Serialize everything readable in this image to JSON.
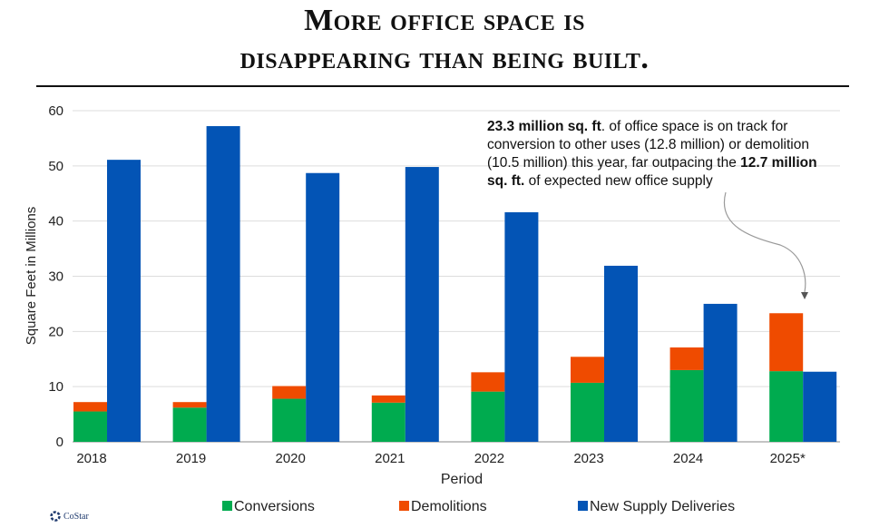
{
  "title_line1": "More office space is",
  "title_line2": "disappearing than being built.",
  "annotation": {
    "bold1": "23.3 million sq. ft",
    "text1": ". of office space is on track for conversion to other uses (12.8 million) or demolition (10.5 million) this year, far outpacing the ",
    "bold2": "12.7 million sq. ft.",
    "text2": " of expected new office supply"
  },
  "logo": "CoStar",
  "colors": {
    "conversions": "#00ab4f",
    "demolitions": "#ef4b00",
    "supply": "#0354b5"
  },
  "chart_data": {
    "type": "bar",
    "stacked_groups": [
      [
        "Conversions",
        "Demolitions"
      ],
      [
        "New Supply Deliveries"
      ]
    ],
    "categories": [
      "2018",
      "2019",
      "2020",
      "2021",
      "2022",
      "2023",
      "2024",
      "2025*"
    ],
    "series": [
      {
        "name": "Conversions",
        "values": [
          5.5,
          6.2,
          7.8,
          7.1,
          9.1,
          10.7,
          13.0,
          12.8
        ]
      },
      {
        "name": "Demolitions",
        "values": [
          1.7,
          1.0,
          2.3,
          1.3,
          3.5,
          4.7,
          4.1,
          10.5
        ]
      },
      {
        "name": "New Supply Deliveries",
        "values": [
          51.1,
          57.2,
          48.7,
          49.8,
          41.6,
          31.9,
          25.0,
          12.7
        ]
      }
    ],
    "xlabel": "Period",
    "ylabel": "Square Feet in Millions",
    "ylim": [
      0,
      60
    ],
    "yticks": [
      "0",
      "10",
      "20",
      "30",
      "40",
      "50",
      "60"
    ],
    "grid": true,
    "legend": "bottom"
  }
}
